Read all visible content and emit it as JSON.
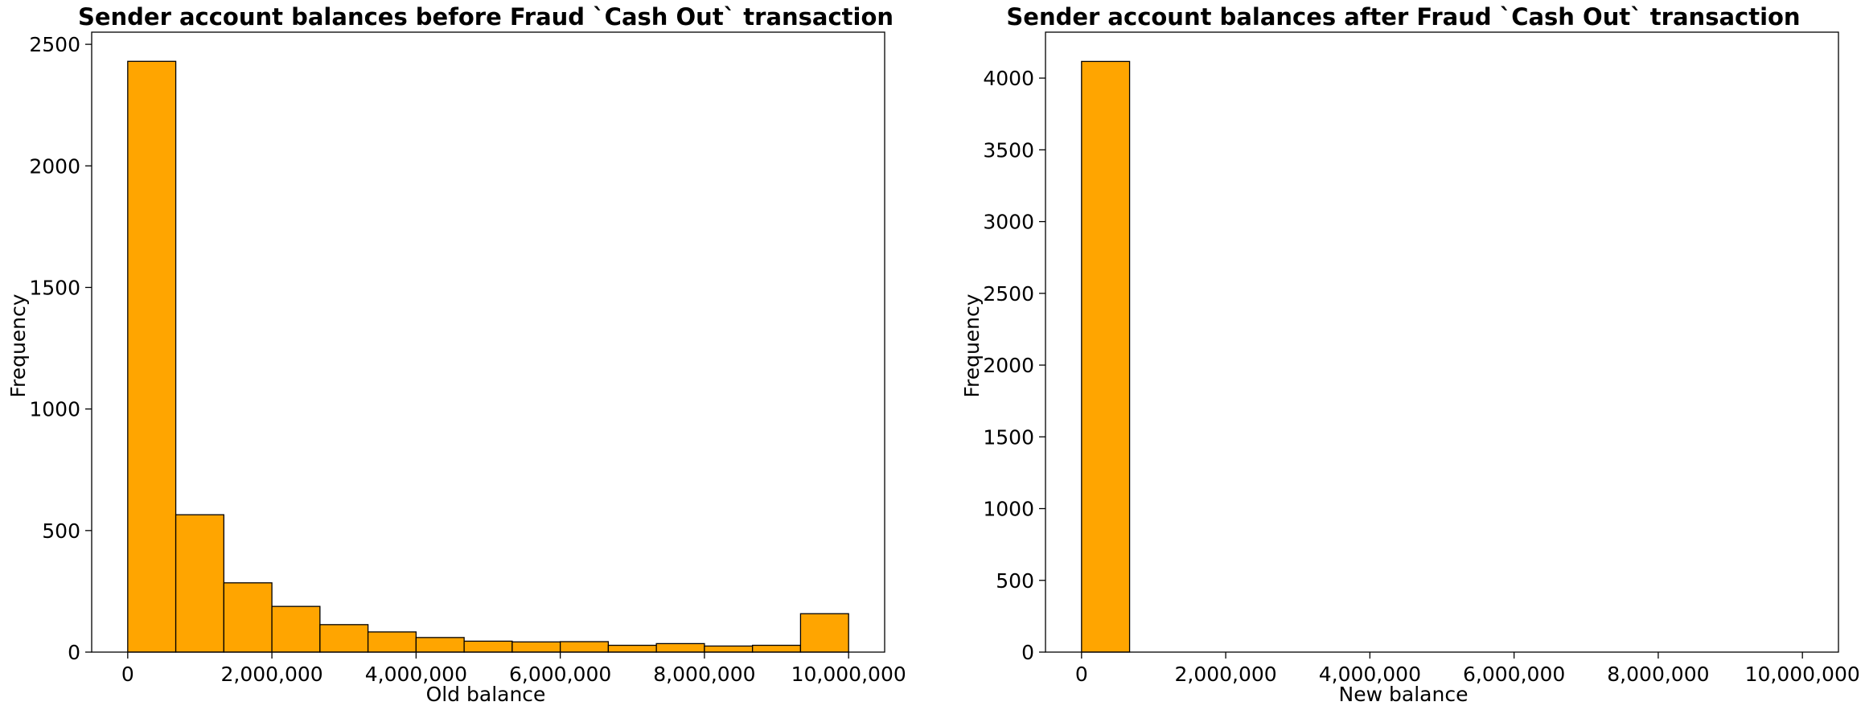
{
  "chart_data": [
    {
      "type": "bar",
      "title": "Sender account balances before Fraud `Cash Out` transaction",
      "xlabel": "Old balance",
      "ylabel": "Frequency",
      "bin_edges": [
        0,
        666667,
        1333333,
        2000000,
        2666667,
        3333333,
        4000000,
        4666667,
        5333333,
        6000000,
        6666667,
        7333333,
        8000000,
        8666667,
        9333333,
        10000000
      ],
      "values": [
        2430,
        565,
        285,
        188,
        113,
        83,
        60,
        45,
        42,
        43,
        28,
        35,
        25,
        28,
        158
      ],
      "xlim": [
        -500000,
        10500000
      ],
      "ylim": [
        0,
        2550
      ],
      "xticks": [
        0,
        2000000,
        4000000,
        6000000,
        8000000,
        10000000
      ],
      "xtick_labels": [
        "0",
        "2,000,000",
        "4,000,000",
        "6,000,000",
        "8,000,000",
        "10,000,000"
      ],
      "yticks": [
        0,
        500,
        1000,
        1500,
        2000,
        2500
      ],
      "ytick_labels": [
        "0",
        "500",
        "1000",
        "1500",
        "2000",
        "2500"
      ],
      "bar_color": "#FFA500",
      "edge_color": "#000000"
    },
    {
      "type": "bar",
      "title": "Sender account balances after Fraud `Cash Out` transaction",
      "xlabel": "New balance",
      "ylabel": "Frequency",
      "bin_edges": [
        0,
        666667,
        1333333,
        2000000,
        2666667,
        3333333,
        4000000,
        4666667,
        5333333,
        6000000,
        6666667,
        7333333,
        8000000,
        8666667,
        9333333,
        10000000
      ],
      "values": [
        4116,
        0,
        0,
        0,
        0,
        0,
        0,
        0,
        0,
        0,
        0,
        0,
        0,
        0,
        0
      ],
      "xlim": [
        -500000,
        10500000
      ],
      "ylim": [
        0,
        4320
      ],
      "xticks": [
        0,
        2000000,
        4000000,
        6000000,
        8000000,
        10000000
      ],
      "xtick_labels": [
        "0",
        "2,000,000",
        "4,000,000",
        "6,000,000",
        "8,000,000",
        "10,000,000"
      ],
      "yticks": [
        0,
        500,
        1000,
        1500,
        2000,
        2500,
        3000,
        3500,
        4000
      ],
      "ytick_labels": [
        "0",
        "500",
        "1000",
        "1500",
        "2000",
        "2500",
        "3000",
        "3500",
        "4000"
      ],
      "bar_color": "#FFA500",
      "edge_color": "#000000"
    }
  ]
}
